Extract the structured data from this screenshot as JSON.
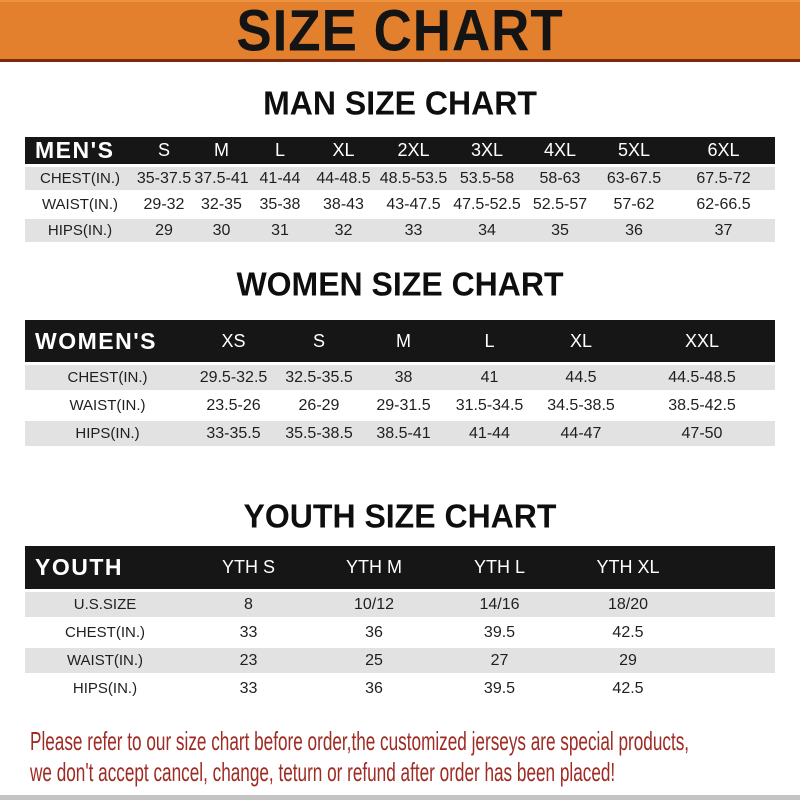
{
  "colors": {
    "orange": "#E2802E",
    "maroon": "#7B2A10",
    "bar-black": "#161616",
    "row-gray": "#E2E2E2",
    "red-text": "#9E2B24"
  },
  "banner": {
    "title": "SIZE CHART"
  },
  "sections": [
    {
      "title": "MAN SIZE CHART",
      "header_label": "MEN'S",
      "columns": [
        "S",
        "M",
        "L",
        "XL",
        "2XL",
        "3XL",
        "4XL",
        "5XL",
        "6XL"
      ],
      "rows": [
        {
          "label": "CHEST(IN.)",
          "values": [
            "35-37.5",
            "37.5-41",
            "41-44",
            "44-48.5",
            "48.5-53.5",
            "53.5-58",
            "58-63",
            "63-67.5",
            "67.5-72"
          ]
        },
        {
          "label": "WAIST(IN.)",
          "values": [
            "29-32",
            "32-35",
            "35-38",
            "38-43",
            "43-47.5",
            "47.5-52.5",
            "52.5-57",
            "57-62",
            "62-66.5"
          ]
        },
        {
          "label": "HIPS(IN.)",
          "values": [
            "29",
            "30",
            "31",
            "32",
            "33",
            "34",
            "35",
            "36",
            "37"
          ]
        }
      ]
    },
    {
      "title": "WOMEN SIZE CHART",
      "header_label": "WOMEN'S",
      "columns": [
        "XS",
        "S",
        "M",
        "L",
        "XL",
        "XXL"
      ],
      "rows": [
        {
          "label": "CHEST(IN.)",
          "values": [
            "29.5-32.5",
            "32.5-35.5",
            "38",
            "41",
            "44.5",
            "44.5-48.5"
          ]
        },
        {
          "label": "WAIST(IN.)",
          "values": [
            "23.5-26",
            "26-29",
            "29-31.5",
            "31.5-34.5",
            "34.5-38.5",
            "38.5-42.5"
          ]
        },
        {
          "label": "HIPS(IN.)",
          "values": [
            "33-35.5",
            "35.5-38.5",
            "38.5-41",
            "41-44",
            "44-47",
            "47-50"
          ]
        }
      ]
    },
    {
      "title": "YOUTH SIZE CHART",
      "header_label": "YOUTH",
      "columns": [
        "YTH S",
        "YTH M",
        "YTH L",
        "YTH XL"
      ],
      "rows": [
        {
          "label": "U.S.SIZE",
          "values": [
            "8",
            "10/12",
            "14/16",
            "18/20"
          ]
        },
        {
          "label": "CHEST(IN.)",
          "values": [
            "33",
            "36",
            "39.5",
            "42.5"
          ]
        },
        {
          "label": "WAIST(IN.)",
          "values": [
            "23",
            "25",
            "27",
            "29"
          ]
        },
        {
          "label": "HIPS(IN.)",
          "values": [
            "33",
            "36",
            "39.5",
            "42.5"
          ]
        }
      ]
    }
  ],
  "footer": {
    "line1": "Please refer to our size chart before order,the customized jerseys are special products,",
    "line2": "we don't accept cancel, change, teturn or refund after order has been placed!"
  },
  "chart_data": [
    {
      "type": "table",
      "title": "MAN SIZE CHART",
      "columns": [
        "MEN'S",
        "S",
        "M",
        "L",
        "XL",
        "2XL",
        "3XL",
        "4XL",
        "5XL",
        "6XL"
      ],
      "rows": [
        [
          "CHEST(IN.)",
          "35-37.5",
          "37.5-41",
          "41-44",
          "44-48.5",
          "48.5-53.5",
          "53.5-58",
          "58-63",
          "63-67.5",
          "67.5-72"
        ],
        [
          "WAIST(IN.)",
          "29-32",
          "32-35",
          "35-38",
          "38-43",
          "43-47.5",
          "47.5-52.5",
          "52.5-57",
          "57-62",
          "62-66.5"
        ],
        [
          "HIPS(IN.)",
          "29",
          "30",
          "31",
          "32",
          "33",
          "34",
          "35",
          "36",
          "37"
        ]
      ]
    },
    {
      "type": "table",
      "title": "WOMEN SIZE CHART",
      "columns": [
        "WOMEN'S",
        "XS",
        "S",
        "M",
        "L",
        "XL",
        "XXL"
      ],
      "rows": [
        [
          "CHEST(IN.)",
          "29.5-32.5",
          "32.5-35.5",
          "38",
          "41",
          "44.5",
          "44.5-48.5"
        ],
        [
          "WAIST(IN.)",
          "23.5-26",
          "26-29",
          "29-31.5",
          "31.5-34.5",
          "34.5-38.5",
          "38.5-42.5"
        ],
        [
          "HIPS(IN.)",
          "33-35.5",
          "35.5-38.5",
          "38.5-41",
          "41-44",
          "44-47",
          "47-50"
        ]
      ]
    },
    {
      "type": "table",
      "title": "YOUTH SIZE CHART",
      "columns": [
        "YOUTH",
        "YTH S",
        "YTH M",
        "YTH L",
        "YTH XL"
      ],
      "rows": [
        [
          "U.S.SIZE",
          "8",
          "10/12",
          "14/16",
          "18/20"
        ],
        [
          "CHEST(IN.)",
          "33",
          "36",
          "39.5",
          "42.5"
        ],
        [
          "WAIST(IN.)",
          "23",
          "25",
          "27",
          "29"
        ],
        [
          "HIPS(IN.)",
          "33",
          "36",
          "39.5",
          "42.5"
        ]
      ]
    }
  ]
}
